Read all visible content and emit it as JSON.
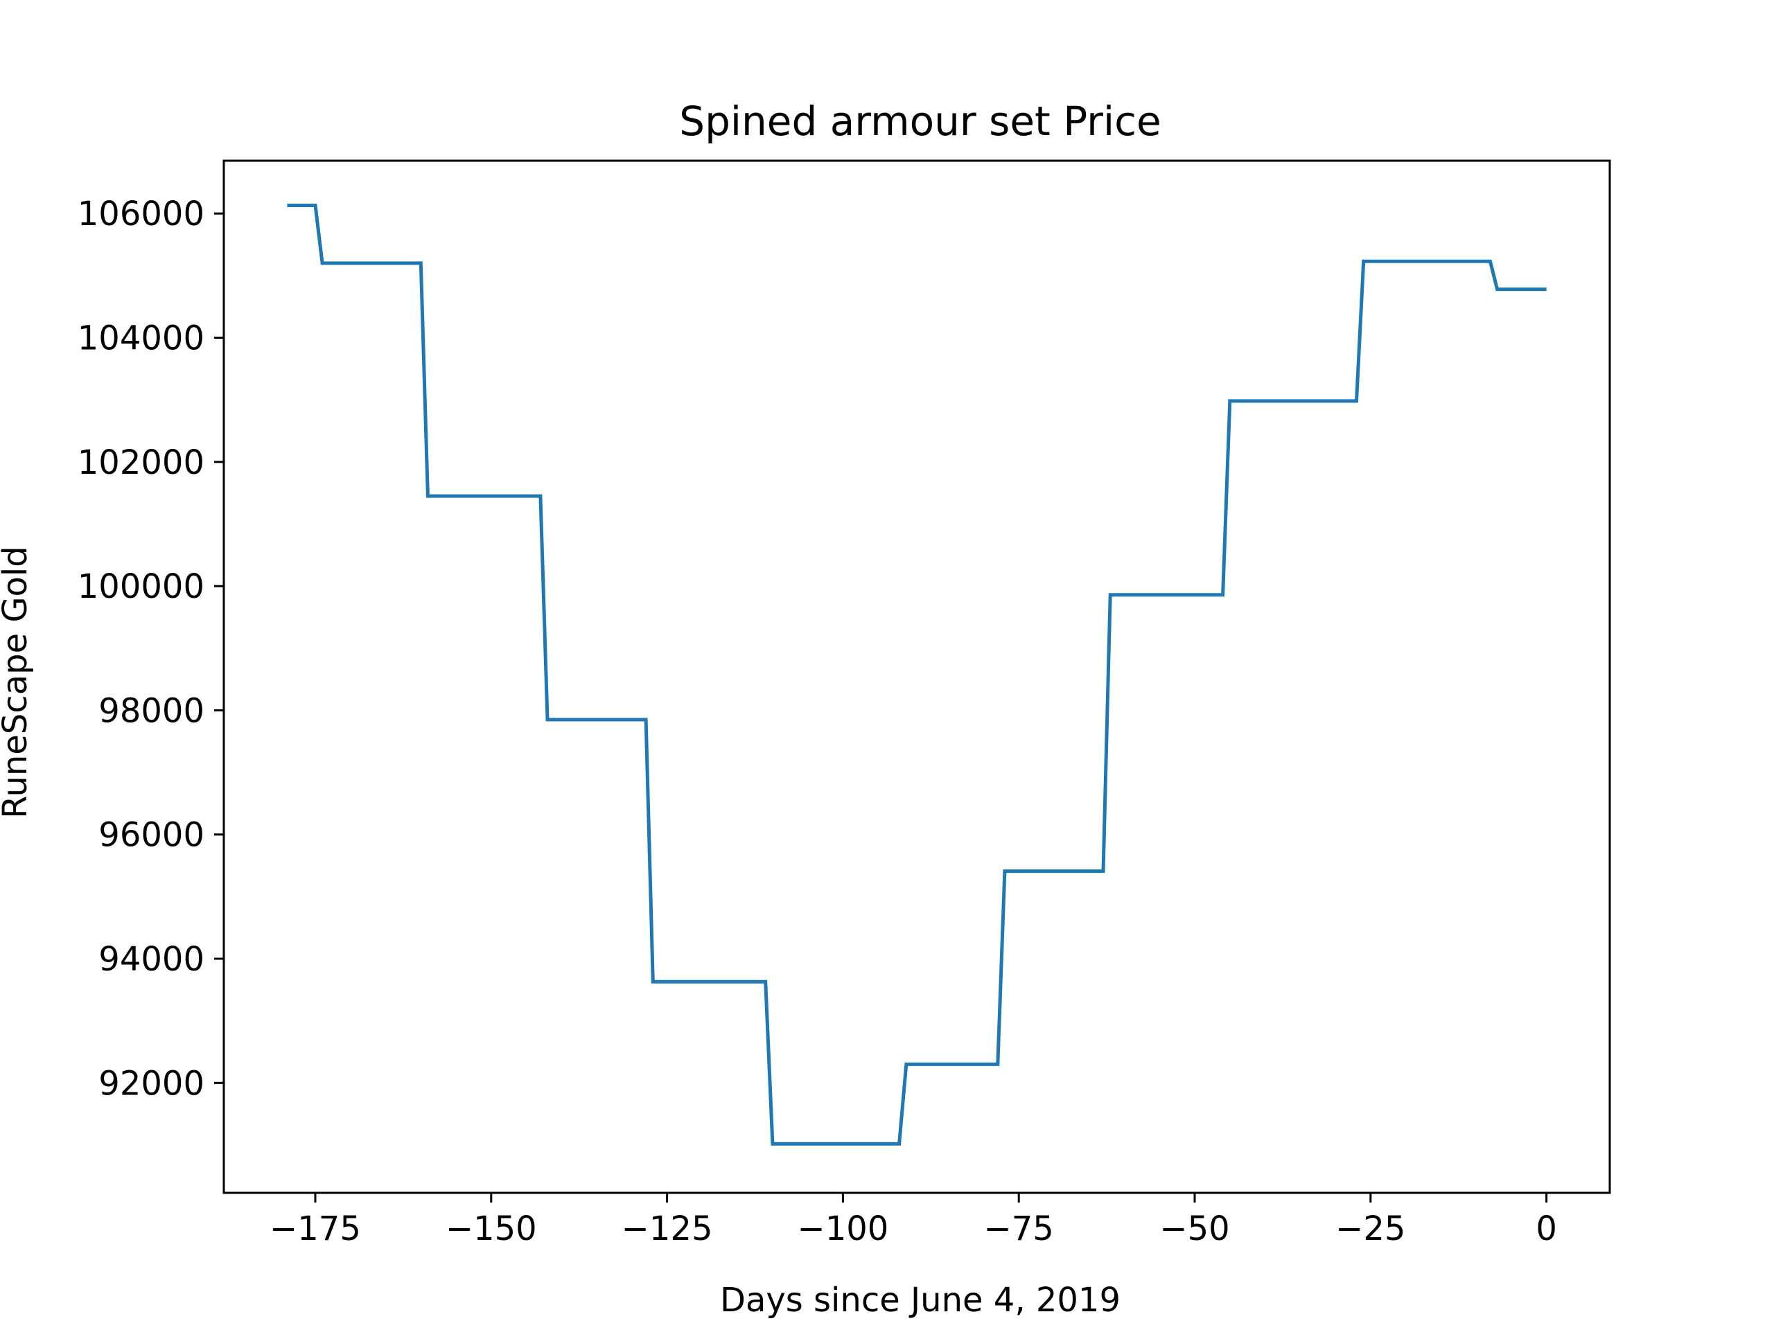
{
  "chart_data": {
    "type": "line",
    "title": "Spined armour set Price",
    "xlabel": "Days since June 4, 2019",
    "ylabel": "RuneScape Gold",
    "xlim": [
      -188,
      9
    ],
    "ylim": [
      90230,
      106850
    ],
    "xticks": [
      -175,
      -150,
      -125,
      -100,
      -75,
      -50,
      -25,
      0
    ],
    "xtick_labels": [
      "−175",
      "−150",
      "−125",
      "−100",
      "−75",
      "−50",
      "−25",
      "0"
    ],
    "yticks": [
      92000,
      94000,
      96000,
      98000,
      100000,
      102000,
      104000,
      106000
    ],
    "ytick_labels": [
      "92000",
      "94000",
      "96000",
      "98000",
      "100000",
      "102000",
      "104000",
      "106000"
    ],
    "grid": false,
    "legend": false,
    "colors": {
      "line": "#1f77b4",
      "axes": "#000000",
      "background": "#ffffff"
    },
    "series": [
      {
        "x": [
          -179,
          -175,
          -174,
          -160,
          -159,
          -143,
          -142,
          -128,
          -127,
          -111,
          -110,
          -92,
          -91,
          -78,
          -77,
          -63,
          -62,
          -46,
          -45,
          -27,
          -26,
          -8,
          -7,
          0
        ],
        "y": [
          106130,
          106130,
          105200,
          105200,
          101450,
          101450,
          97850,
          97850,
          93630,
          93630,
          91020,
          91020,
          92300,
          92300,
          95410,
          95410,
          99860,
          99860,
          102980,
          102980,
          105230,
          105230,
          104780,
          104780
        ]
      }
    ]
  }
}
